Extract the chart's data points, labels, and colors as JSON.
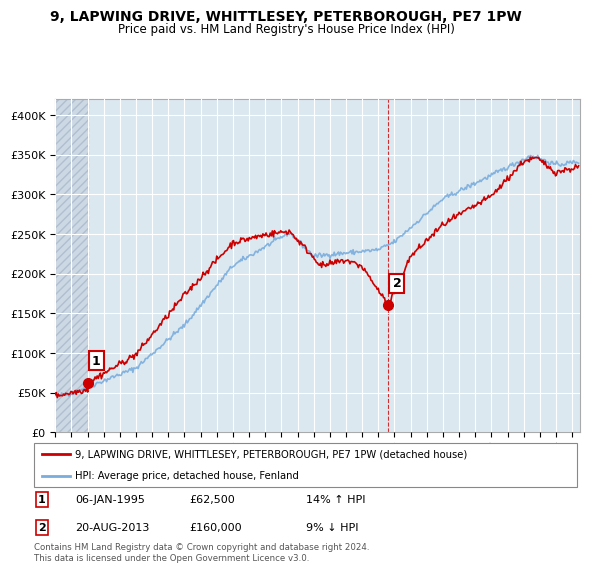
{
  "title": "9, LAPWING DRIVE, WHITTLESEY, PETERBOROUGH, PE7 1PW",
  "subtitle": "Price paid vs. HM Land Registry's House Price Index (HPI)",
  "ylabel_ticks": [
    "£0",
    "£50K",
    "£100K",
    "£150K",
    "£200K",
    "£250K",
    "£300K",
    "£350K",
    "£400K"
  ],
  "ytick_values": [
    0,
    50000,
    100000,
    150000,
    200000,
    250000,
    300000,
    350000,
    400000
  ],
  "ylim": [
    0,
    420000
  ],
  "xlim_start": 1993.0,
  "xlim_end": 2025.5,
  "house_color": "#cc0000",
  "hpi_color": "#7aaddc",
  "sale1_x": 1995.03,
  "sale1_y": 62500,
  "sale1_label": "1",
  "sale2_x": 2013.63,
  "sale2_y": 160000,
  "sale2_label": "2",
  "legend_house": "9, LAPWING DRIVE, WHITTLESEY, PETERBOROUGH, PE7 1PW (detached house)",
  "legend_hpi": "HPI: Average price, detached house, Fenland",
  "footer": "Contains HM Land Registry data © Crown copyright and database right 2024.\nThis data is licensed under the Open Government Licence v3.0.",
  "background_plot": "#dce8f0",
  "background_hatch_fc": "#ccd8e4",
  "hatch_pattern": "////",
  "hatch_edge": "#b0bece",
  "grid_color": "#ffffff",
  "spine_color": "#aaaaaa"
}
